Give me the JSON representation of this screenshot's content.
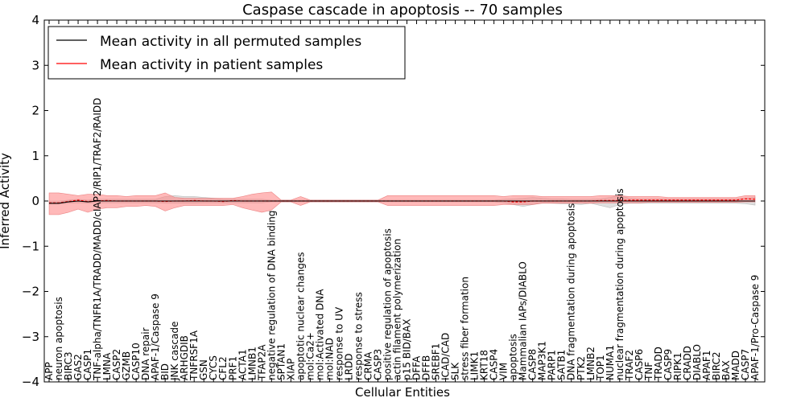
{
  "chart_data": {
    "type": "line",
    "title": "Caspase cascade in apoptosis -- 70 samples",
    "xlabel": "Cellular Entities",
    "ylabel": "Inferred Activity",
    "ylim": [
      -4,
      4
    ],
    "yticks": [
      -4,
      -3,
      -2,
      -1,
      0,
      1,
      2,
      3,
      4
    ],
    "ytick_labels": [
      "−4",
      "−3",
      "−2",
      "−1",
      "0",
      "1",
      "2",
      "3",
      "4"
    ],
    "grid": false,
    "legend_position": "top-left",
    "categories": [
      "APP",
      "neuron apoptosis",
      "BIRC3",
      "GAS2",
      "CASP1",
      "TNF-alpha/TNFR1A/TRADD/MADD/cIAP2/RIP1/TRAF2/RAIDD",
      "LMNA",
      "CASP2",
      "GZMB",
      "CASP10",
      "DNA repair",
      "APAF-1/Caspase 9",
      "BID",
      "JNK cascade",
      "ARHGDIB",
      "TNFRSF1A",
      "GSN",
      "CYCS",
      "CFL2",
      "PRF1",
      "ACTA1",
      "LMNB1",
      "TFAP2A",
      "negative regulation of DNA binding",
      "SPTAN1",
      "XIAP",
      "apoptotic nuclear changes",
      "mol:Ca2+",
      "mol:Activated DNA",
      "mol:NAD",
      "response to UV",
      "LRDD",
      "response to stress",
      "CRMA",
      "CASP3",
      "positive regulation of apoptosis",
      "actin filament polymerization",
      "p15 BID/BAX",
      "DFFA",
      "DFFB",
      "SREBF1",
      "ICAD/CAD",
      "SLK",
      "stress fiber formation",
      "LIMK1",
      "KRT18",
      "CASP4",
      "VIM",
      "apoptosis",
      "Mammalian IAPs/DIABLO",
      "CASP8",
      "MAP3K1",
      "PARP1",
      "SATB1",
      "DNA fragmentation during apoptosis",
      "PTK2",
      "LMNB2",
      "TOP1",
      "NUMA1",
      "nuclear fragmentation during apoptosis",
      "TRAF2",
      "CASP6",
      "TNF",
      "TRADD",
      "CASP9",
      "RIPK1",
      "CRADD",
      "DIABLO",
      "APAF1",
      "BIRC2",
      "BAX",
      "MADD",
      "CASP7",
      "APAF-1/Pro-Caspase 9"
    ],
    "series": [
      {
        "name": "Mean activity in all permuted samples",
        "color": "#000000",
        "values": [
          -0.05,
          -0.05,
          -0.02,
          0.0,
          -0.02,
          0.0,
          0.0,
          0.0,
          0.0,
          0.0,
          0.0,
          0.0,
          0.0,
          0.0,
          0.0,
          0.0,
          0.0,
          0.0,
          0.0,
          0.0,
          0.0,
          0.0,
          0.0,
          0.0,
          0.0,
          0.0,
          0.0,
          0.0,
          0.0,
          0.0,
          0.0,
          0.0,
          0.0,
          0.0,
          0.0,
          0.0,
          0.0,
          0.0,
          0.0,
          0.0,
          0.0,
          0.0,
          0.0,
          0.0,
          0.0,
          0.0,
          0.0,
          0.0,
          0.0,
          0.0,
          0.0,
          0.0,
          0.0,
          0.0,
          0.0,
          0.0,
          0.0,
          0.0,
          0.0,
          0.0,
          0.0,
          0.0,
          0.0,
          0.0,
          0.0,
          0.0,
          0.0,
          0.0,
          0.0,
          0.0,
          0.0,
          0.0,
          0.0,
          0.0
        ],
        "lower": [
          -0.07,
          -0.07,
          -0.05,
          -0.04,
          -0.05,
          -0.04,
          -0.04,
          -0.04,
          -0.04,
          -0.04,
          -0.04,
          -0.04,
          -0.05,
          -0.05,
          -0.05,
          -0.05,
          -0.04,
          -0.04,
          -0.04,
          -0.04,
          -0.04,
          -0.04,
          -0.04,
          -0.02,
          -0.02,
          -0.02,
          -0.02,
          -0.02,
          -0.02,
          -0.02,
          -0.02,
          -0.02,
          -0.02,
          -0.02,
          -0.02,
          -0.02,
          -0.02,
          -0.02,
          -0.02,
          -0.02,
          -0.02,
          -0.02,
          -0.02,
          -0.02,
          -0.02,
          -0.02,
          -0.02,
          -0.04,
          -0.08,
          -0.12,
          -0.08,
          -0.04,
          -0.05,
          -0.06,
          -0.06,
          -0.08,
          -0.05,
          -0.1,
          -0.15,
          -0.08,
          -0.05,
          -0.05,
          -0.05,
          -0.05,
          -0.05,
          -0.05,
          -0.05,
          -0.05,
          -0.05,
          -0.05,
          -0.05,
          -0.05,
          -0.06,
          -0.09
        ],
        "upper": [
          0.0,
          0.0,
          0.02,
          0.04,
          0.02,
          0.04,
          0.04,
          0.04,
          0.04,
          0.04,
          0.04,
          0.04,
          0.1,
          0.12,
          0.1,
          0.1,
          0.08,
          0.06,
          0.04,
          0.04,
          0.04,
          0.04,
          0.04,
          0.02,
          0.02,
          0.02,
          0.02,
          0.02,
          0.02,
          0.02,
          0.02,
          0.02,
          0.02,
          0.02,
          0.02,
          0.02,
          0.02,
          0.02,
          0.02,
          0.02,
          0.02,
          0.02,
          0.02,
          0.02,
          0.02,
          0.02,
          0.02,
          0.04,
          0.05,
          0.06,
          0.08,
          0.06,
          0.05,
          0.05,
          0.04,
          0.04,
          0.04,
          0.05,
          0.08,
          0.12,
          0.06,
          0.05,
          0.05,
          0.05,
          0.05,
          0.05,
          0.05,
          0.05,
          0.05,
          0.05,
          0.05,
          0.05,
          0.06,
          0.08
        ]
      },
      {
        "name": "Mean activity in patient samples",
        "color": "#ff0000",
        "values": [
          -0.04,
          -0.04,
          -0.01,
          0.02,
          -0.01,
          0.0,
          0.01,
          0.0,
          0.0,
          0.0,
          0.0,
          0.0,
          -0.01,
          0.0,
          0.0,
          0.01,
          0.0,
          0.0,
          -0.01,
          0.01,
          0.0,
          0.0,
          0.0,
          0.0,
          0.0,
          0.0,
          0.0,
          0.0,
          0.0,
          0.0,
          0.0,
          0.0,
          0.0,
          0.0,
          0.0,
          0.0,
          0.0,
          0.0,
          0.0,
          0.0,
          0.0,
          0.0,
          0.0,
          0.0,
          0.0,
          0.0,
          0.0,
          0.0,
          -0.02,
          -0.02,
          0.0,
          0.0,
          0.0,
          0.0,
          0.0,
          0.0,
          0.0,
          0.01,
          0.01,
          0.01,
          0.02,
          0.02,
          0.02,
          0.02,
          0.02,
          0.02,
          0.02,
          0.02,
          0.02,
          0.02,
          0.02,
          0.02,
          0.05,
          0.04
        ],
        "lower": [
          -0.3,
          -0.3,
          -0.25,
          -0.18,
          -0.25,
          -0.18,
          -0.15,
          -0.15,
          -0.12,
          -0.12,
          -0.1,
          -0.12,
          -0.22,
          -0.15,
          -0.1,
          -0.1,
          -0.1,
          -0.1,
          -0.1,
          -0.08,
          -0.15,
          -0.2,
          -0.25,
          -0.2,
          -0.02,
          -0.02,
          -0.1,
          -0.02,
          -0.02,
          -0.02,
          -0.02,
          -0.02,
          -0.02,
          -0.02,
          -0.02,
          -0.1,
          -0.1,
          -0.1,
          -0.1,
          -0.1,
          -0.1,
          -0.1,
          -0.1,
          -0.1,
          -0.1,
          -0.1,
          -0.1,
          -0.08,
          -0.08,
          -0.08,
          -0.08,
          -0.05,
          -0.05,
          -0.05,
          -0.05,
          -0.05,
          -0.05,
          -0.04,
          -0.04,
          -0.04,
          -0.04,
          -0.04,
          -0.03,
          -0.03,
          -0.03,
          -0.03,
          -0.03,
          -0.03,
          -0.03,
          -0.03,
          -0.03,
          -0.03,
          -0.02,
          -0.02
        ],
        "upper": [
          0.18,
          0.18,
          0.15,
          0.12,
          0.15,
          0.15,
          0.12,
          0.12,
          0.1,
          0.12,
          0.12,
          0.12,
          0.18,
          0.08,
          0.06,
          0.06,
          0.06,
          0.06,
          0.06,
          0.06,
          0.1,
          0.15,
          0.18,
          0.2,
          0.02,
          0.02,
          0.1,
          0.02,
          0.02,
          0.02,
          0.02,
          0.02,
          0.02,
          0.02,
          0.02,
          0.12,
          0.12,
          0.12,
          0.12,
          0.12,
          0.12,
          0.12,
          0.12,
          0.12,
          0.12,
          0.12,
          0.12,
          0.1,
          0.12,
          0.12,
          0.12,
          0.1,
          0.1,
          0.1,
          0.1,
          0.1,
          0.1,
          0.12,
          0.12,
          0.12,
          0.1,
          0.1,
          0.1,
          0.1,
          0.08,
          0.08,
          0.08,
          0.08,
          0.08,
          0.08,
          0.08,
          0.08,
          0.12,
          0.12
        ]
      }
    ]
  }
}
